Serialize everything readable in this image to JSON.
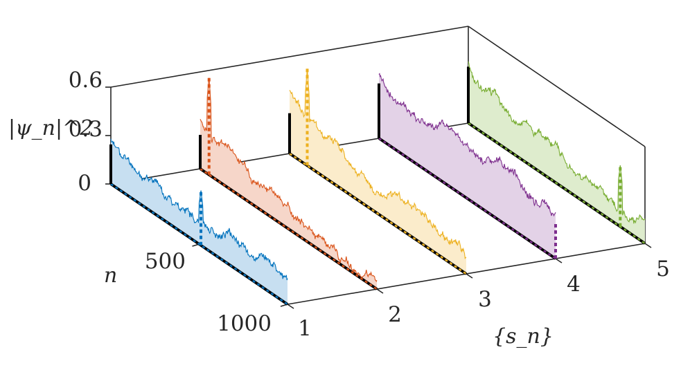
{
  "chart_data": {
    "type": "line",
    "title": "",
    "xlabel": "{s_n}",
    "ylabel": "n",
    "zlabel": "|ψ_n|^2",
    "x_ticks": [
      "1",
      "2",
      "3",
      "4",
      "5"
    ],
    "n_ticks": [
      "500",
      "1000"
    ],
    "z_ticks": [
      "0",
      "0.3",
      "0.6"
    ],
    "nlim": [
      0,
      1000
    ],
    "zlim": [
      0,
      0.6
    ],
    "grid": false,
    "series": [
      {
        "s": 1,
        "color": "#0072BD",
        "fill": "#c7dff1",
        "peak_n": 510,
        "peak_z": 0.34,
        "end_z": 0.18,
        "level": 0.21,
        "edge_spike": 0.39,
        "seed": 11
      },
      {
        "s": 2,
        "color": "#D95319",
        "fill": "#f6d6c9",
        "peak_n": 50,
        "peak_z": 0.6,
        "end_z": 0.09,
        "level": 0.22,
        "edge_spike": 0.32,
        "seed": 23
      },
      {
        "s": 3,
        "color": "#EDB120",
        "fill": "#fbeccb",
        "peak_n": 100,
        "peak_z": 0.6,
        "end_z": 0.14,
        "level": 0.29,
        "edge_spike": 0.4,
        "seed": 37
      },
      {
        "s": 4,
        "color": "#7E2F8E",
        "fill": "#e3d2e7",
        "peak_n": 1000,
        "peak_z": 0.22,
        "end_z": 0.22,
        "level": 0.3,
        "edge_spike": 0.58,
        "seed": 41
      },
      {
        "s": 5,
        "color": "#77AC30",
        "fill": "#deeccd",
        "peak_n": 860,
        "peak_z": 0.38,
        "end_z": 0.15,
        "level": 0.3,
        "edge_spike": 0.6,
        "seed": 53
      }
    ]
  }
}
